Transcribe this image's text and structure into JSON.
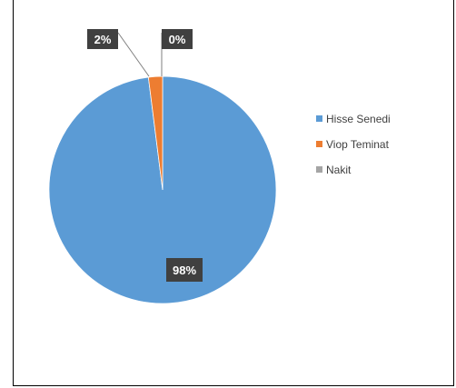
{
  "chart_data": {
    "type": "pie",
    "title": "",
    "categories": [
      "Hisse Senedi",
      "Viop Teminat",
      "Nakit"
    ],
    "values": [
      98,
      2,
      0
    ],
    "data_labels": [
      "98%",
      "2%",
      "0%"
    ],
    "colors": [
      "#5b9bd5",
      "#ed7d31",
      "#a5a5a5"
    ],
    "legend_position": "right",
    "label_box_color": "#404040",
    "leader_line_color": "#7f7f7f"
  }
}
